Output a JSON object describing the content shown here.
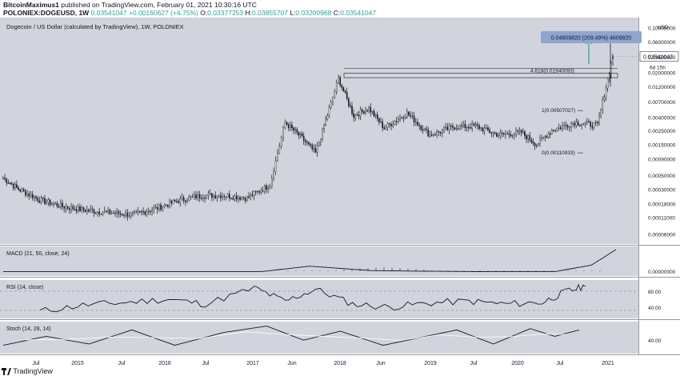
{
  "header": {
    "author": "BitcoinMaximus1",
    "published": "published on TradingView.com, February 01, 2021 10:30:16 UTC",
    "symbol": "POLONIEX:DOGEUSD, 1W",
    "last": "0.03541047",
    "change": "+0.00160627 (+4.75%)",
    "o_label": "O:",
    "o_value": "0.03377253",
    "h_label": "H:",
    "h_value": "0.03855707",
    "l_label": "L:",
    "l_value": "0.03200968",
    "c_label": "C:",
    "c_value": "0.03541047"
  },
  "footer": {
    "brand": "TradingView"
  },
  "colors": {
    "pane_bg": "#d1d4dc",
    "candle": "#131722",
    "fib_line": "#131722",
    "arrow": "#26a69a",
    "callout_bg": "#8ea5cf",
    "last_price_bg": "#ffffff"
  },
  "chart_data": [
    {
      "type": "candlestick",
      "title": "Dogecoin / US Dollar (calculated by TradingView), 1W, POLONIEX",
      "y_scale": "log",
      "y_unit_label": "USD",
      "y_ticks": [
        "0.10000000",
        "0.06000000",
        "0.03500000",
        "0.02000000",
        "0.01200000",
        "0.00700000",
        "0.00400000",
        "0.00250000",
        "0.00150000",
        "0.00090000",
        "0.00050000",
        "0.00030000",
        "0.00018000",
        "0.00011000",
        "0.00006000"
      ],
      "x_ticks": [
        "Jul",
        "2015",
        "Jul",
        "2016",
        "Jul",
        "2017",
        "Jun",
        "2018",
        "Jun",
        "2019",
        "Jul",
        "2020",
        "Jul",
        "2021"
      ],
      "last_price_label": "0.03541047",
      "countdown_label": "6d 15h",
      "callout": "0.04609820 (209.49%) 4609820",
      "fib_levels": [
        {
          "label": "4.618(0.01940093)",
          "value": 0.01940093
        },
        {
          "label": "1(0.00507027)",
          "value": 0.00507027
        },
        {
          "label": "0(0.00110933)",
          "value": 0.00110933
        }
      ],
      "series": [
        {
          "x": [
            "2014-05",
            "2014-07",
            "2014-10",
            "2015-01",
            "2015-04",
            "2015-07",
            "2015-10",
            "2016-01",
            "2016-04",
            "2016-07",
            "2016-10",
            "2017-01",
            "2017-04",
            "2017-05",
            "2017-06",
            "2017-08",
            "2017-10",
            "2017-12",
            "2018-01",
            "2018-03",
            "2018-05",
            "2018-07",
            "2018-10",
            "2019-01",
            "2019-04",
            "2019-07",
            "2019-10",
            "2020-01",
            "2020-03",
            "2020-05",
            "2020-08",
            "2020-11",
            "2021-01"
          ],
          "close": [
            0.00045,
            0.0003,
            0.0002,
            0.00016,
            0.00014,
            0.00013,
            0.00012,
            0.00015,
            0.0002,
            0.00024,
            0.00024,
            0.00022,
            0.00035,
            0.0011,
            0.0033,
            0.002,
            0.0011,
            0.0065,
            0.016,
            0.0042,
            0.0055,
            0.0027,
            0.0046,
            0.0021,
            0.0028,
            0.0029,
            0.0021,
            0.0023,
            0.0015,
            0.0025,
            0.0033,
            0.003,
            0.03541
          ]
        }
      ]
    },
    {
      "type": "line",
      "title": "MACD (21, 50, close, 24)",
      "y_ticks": [
        "0.00000000"
      ],
      "series": [
        {
          "x": [
            0,
            0.3,
            0.42,
            0.5,
            0.6,
            0.7,
            0.8,
            0.9,
            0.96,
            1.0
          ],
          "values": [
            0.0,
            0.0,
            0.0,
            0.25,
            0.05,
            0.02,
            0.0,
            0.0,
            0.3,
            1.0
          ]
        }
      ]
    },
    {
      "type": "line",
      "title": "RSI (14, close)",
      "y_ticks": [
        "80.00",
        "40.00"
      ],
      "series": [
        {
          "x": [
            0.06,
            0.13,
            0.2,
            0.27,
            0.33,
            0.41,
            0.46,
            0.51,
            0.57,
            0.63,
            0.69,
            0.76,
            0.82,
            0.88,
            0.92,
            0.95
          ],
          "values": [
            30,
            45,
            52,
            60,
            48,
            88,
            55,
            85,
            48,
            40,
            50,
            55,
            48,
            52,
            80,
            92
          ]
        }
      ]
    },
    {
      "type": "line",
      "title": "Stoch (14, 28, 14)",
      "y_ticks": [
        "40.00"
      ],
      "series": [
        {
          "x": [
            0.0,
            0.07,
            0.14,
            0.21,
            0.28,
            0.36,
            0.43,
            0.49,
            0.55,
            0.62,
            0.68,
            0.74,
            0.8,
            0.86,
            0.9,
            0.94
          ],
          "values": [
            20,
            55,
            25,
            80,
            20,
            70,
            95,
            40,
            75,
            20,
            50,
            80,
            25,
            85,
            55,
            80
          ]
        }
      ]
    }
  ]
}
